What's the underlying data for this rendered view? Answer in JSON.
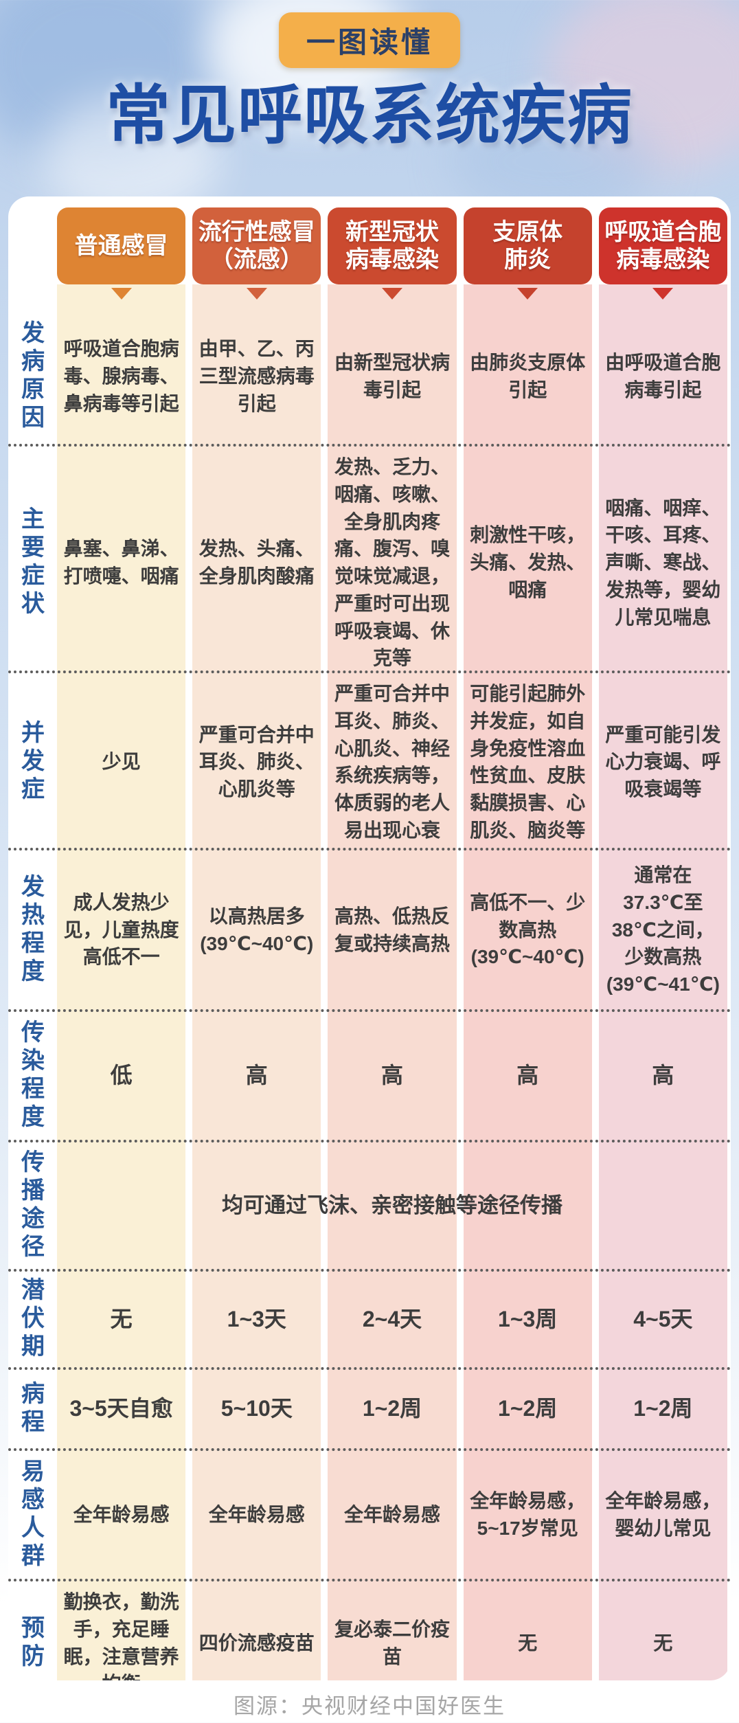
{
  "badge": "一图读懂",
  "title": "常见呼吸系统疾病",
  "footer": "图源：央视财经中国好医生",
  "accent_colors": {
    "title_blue": "#1e4ea4",
    "badge_yellow": "#f4af4a",
    "row_label_blue": "#2a5b9c"
  },
  "columns": [
    {
      "label": "普通感冒",
      "color": "#de8433",
      "strip": "#faf0d6"
    },
    {
      "label": "流行性感冒\n（流感）",
      "color": "#d2613c",
      "strip": "#f9e6d7"
    },
    {
      "label": "新型冠状\n病毒感染",
      "color": "#cb4a2f",
      "strip": "#f8dcd2"
    },
    {
      "label": "支原体\n肺炎",
      "color": "#c5422d",
      "strip": "#f7d2ce"
    },
    {
      "label": "呼吸道合胞\n病毒感染",
      "color": "#ce332c",
      "strip": "#f3d6db"
    }
  ],
  "rows": [
    {
      "label": "发病原因",
      "cells": [
        "呼吸道合胞病毒、腺病毒、鼻病毒等引起",
        "由甲、乙、丙三型流感病毒引起",
        "由新型冠状病毒引起",
        "由肺炎支原体引起",
        "由呼吸道合胞病毒引起"
      ]
    },
    {
      "label": "主要症状",
      "cells": [
        "鼻塞、鼻涕、打喷嚏、咽痛",
        "发热、头痛、全身肌肉酸痛",
        "发热、乏力、咽痛、咳嗽、全身肌肉疼痛、腹泻、嗅觉味觉减退，严重时可出现呼吸衰竭、休克等",
        "刺激性干咳，头痛、发热、咽痛",
        "咽痛、咽痒、干咳、耳疼、声嘶、寒战、发热等，婴幼儿常见喘息"
      ]
    },
    {
      "label": "并发症",
      "cells": [
        "少见",
        "严重可合并中耳炎、肺炎、心肌炎等",
        "严重可合并中耳炎、肺炎、心肌炎、神经系统疾病等，体质弱的老人易出现心衰",
        "可能引起肺外并发症，如自身免疫性溶血性贫血、皮肤黏膜损害、心肌炎、脑炎等",
        "严重可能引发心力衰竭、呼吸衰竭等"
      ]
    },
    {
      "label": "发热程度",
      "cells": [
        "成人发热少见，儿童热度高低不一",
        "以高热居多\n(39℃~40℃)",
        "高热、低热反复或持续高热",
        "高低不一、少数高热\n(39℃~40℃)",
        "通常在37.3℃至38℃之间，少数高热\n(39℃~41℃)"
      ]
    },
    {
      "label": "传染程度",
      "cells": [
        "低",
        "高",
        "高",
        "高",
        "高"
      ]
    },
    {
      "label": "传播途径",
      "merged": "均可通过飞沫、亲密接触等途径传播"
    },
    {
      "label": "潜伏期",
      "cells": [
        "无",
        "1~3天",
        "2~4天",
        "1~3周",
        "4~5天"
      ]
    },
    {
      "label": "病程",
      "cells": [
        "3~5天自愈",
        "5~10天",
        "1~2周",
        "1~2周",
        "1~2周"
      ]
    },
    {
      "label": "易感人群",
      "cells": [
        "全年龄易感",
        "全年龄易感",
        "全年龄易感",
        "全年龄易感，5~17岁常见",
        "全年龄易感，婴幼儿常见"
      ]
    },
    {
      "label": "预防",
      "cells": [
        "勤换衣，勤洗手，充足睡眠，注意营养均衡",
        "四价流感疫苗",
        "复必泰二价疫苗",
        "无",
        "无"
      ]
    }
  ]
}
